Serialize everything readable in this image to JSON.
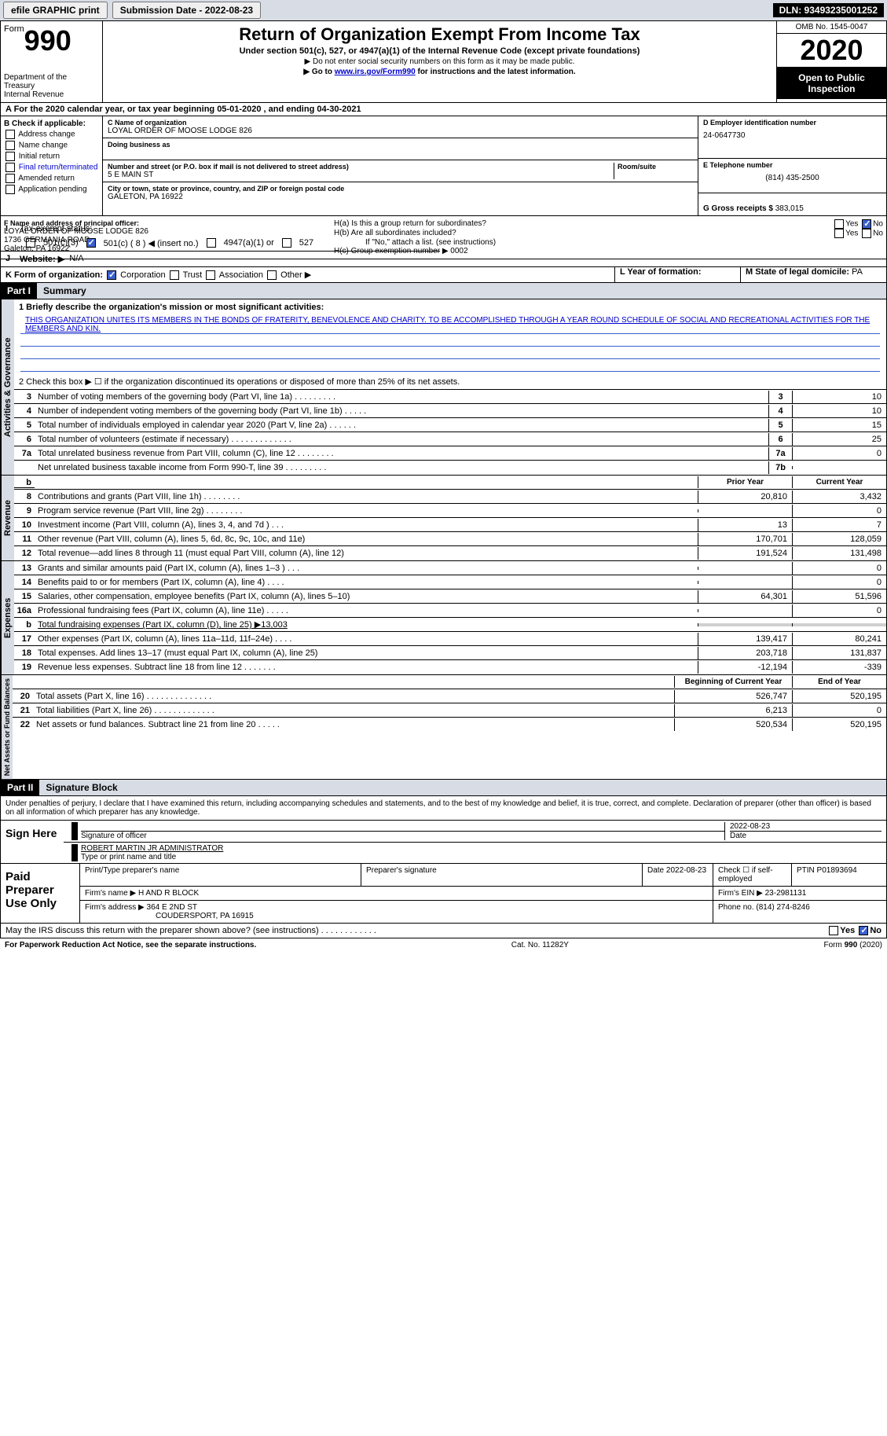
{
  "topbar": {
    "efile": "efile GRAPHIC print",
    "submission": "Submission Date - 2022-08-23",
    "dln": "DLN: 93493235001252"
  },
  "header": {
    "form_word": "Form",
    "form_num": "990",
    "dept1": "Department of the Treasury",
    "dept2": "Internal Revenue",
    "title": "Return of Organization Exempt From Income Tax",
    "sub1": "Under section 501(c), 527, or 4947(a)(1) of the Internal Revenue Code (except private foundations)",
    "sub2": "▶ Do not enter social security numbers on this form as it may be made public.",
    "sub3_a": "▶ Go to ",
    "sub3_link": "www.irs.gov/Form990",
    "sub3_b": " for instructions and the latest information.",
    "omb": "OMB No. 1545-0047",
    "year": "2020",
    "inspect": "Open to Public Inspection"
  },
  "line_a": "A For the 2020 calendar year, or tax year beginning 05-01-2020   , and ending 04-30-2021",
  "col_b": {
    "head": "B Check if applicable:",
    "items": [
      "Address change",
      "Name change",
      "Initial return",
      "Final return/terminated",
      "Amended return",
      "Application pending"
    ]
  },
  "name_block": {
    "label_c": "C Name of organization",
    "name": "LOYAL ORDER OF MOOSE LODGE 826",
    "dba_label": "Doing business as",
    "addr_label": "Number and street (or P.O. box if mail is not delivered to street address)",
    "room_label": "Room/suite",
    "addr": "5 E MAIN ST",
    "city_label": "City or town, state or province, country, and ZIP or foreign postal code",
    "city": "GALETON, PA  16922"
  },
  "right_block": {
    "ein_label": "D Employer identification number",
    "ein": "24-0647730",
    "tel_label": "E Telephone number",
    "tel": "(814) 435-2500",
    "gross_label": "G Gross receipts $ ",
    "gross": "383,015"
  },
  "officer": {
    "label": "F  Name and address of principal officer:",
    "name": "LOYAL ORDER OF MOOSE LODGE 826",
    "addr1": "1736 GERMANIA ROAD",
    "addr2": "Galeton, PA  16922",
    "ha": "H(a)  Is this a group return for subordinates?",
    "hb": "H(b)  Are all subordinates included?",
    "hb_note": "If \"No,\" attach a list. (see instructions)",
    "hc": "H(c)  Group exemption number ▶   0002",
    "yes": "Yes",
    "no": "No"
  },
  "tax_status": {
    "label": "Tax-exempt status:",
    "opt1": "501(c)(3)",
    "opt2": "501(c) ( 8 ) ◀ (insert no.)",
    "opt3": "4947(a)(1) or",
    "opt4": "527"
  },
  "website": {
    "label": "Website: ▶",
    "val": "N/A"
  },
  "form_org": {
    "label": "K Form of organization:",
    "opts": [
      "Corporation",
      "Trust",
      "Association",
      "Other ▶"
    ],
    "year_label": "L Year of formation:",
    "state_label": "M State of legal domicile: ",
    "state": "PA"
  },
  "part1": {
    "label": "Part I",
    "title": "Summary"
  },
  "mission": {
    "q1": "1  Briefly describe the organization's mission or most significant activities:",
    "text": "THIS ORGANIZATION UNITES ITS MEMBERS IN THE BONDS OF FRATERITY, BENEVOLENCE AND CHARITY. TO BE ACCOMPLISHED THROUGH A YEAR ROUND SCHEDULE OF SOCIAL AND RECREATIONAL ACTIVITIES FOR THE MEMBERS AND KIN.",
    "q2": "2   Check this box ▶ ☐  if the organization discontinued its operations or disposed of more than 25% of its net assets."
  },
  "governance": {
    "tab": "Activities & Governance",
    "rows": [
      {
        "n": "3",
        "d": "Number of voting members of the governing body (Part VI, line 1a)  .    .    .    .    .    .    .    .    .",
        "b": "3",
        "v": "10"
      },
      {
        "n": "4",
        "d": "Number of independent voting members of the governing body (Part VI, line 1b)  .    .    .    .    .",
        "b": "4",
        "v": "10"
      },
      {
        "n": "5",
        "d": "Total number of individuals employed in calendar year 2020 (Part V, line 2a)  .    .    .    .    .    .",
        "b": "5",
        "v": "15"
      },
      {
        "n": "6",
        "d": "Total number of volunteers (estimate if necessary)  .    .    .    .    .    .    .    .    .    .    .    .    .",
        "b": "6",
        "v": "25"
      },
      {
        "n": "7a",
        "d": "Total unrelated business revenue from Part VIII, column (C), line 12  .    .    .    .    .    .    .    .",
        "b": "7a",
        "v": "0"
      },
      {
        "n": "",
        "d": "Net unrelated business taxable income from Form 990-T, line 39  .    .    .    .    .    .    .    .    .",
        "b": "7b",
        "v": ""
      }
    ]
  },
  "revenue": {
    "tab": "Revenue",
    "head_prior": "Prior Year",
    "head_current": "Current Year",
    "rows": [
      {
        "n": "8",
        "d": "Contributions and grants (Part VIII, line 1h)  .    .    .    .    .    .    .    .",
        "p": "20,810",
        "c": "3,432"
      },
      {
        "n": "9",
        "d": "Program service revenue (Part VIII, line 2g)  .    .    .    .    .    .    .    .",
        "p": "",
        "c": "0"
      },
      {
        "n": "10",
        "d": "Investment income (Part VIII, column (A), lines 3, 4, and 7d )  .    .    .",
        "p": "13",
        "c": "7"
      },
      {
        "n": "11",
        "d": "Other revenue (Part VIII, column (A), lines 5, 6d, 8c, 9c, 10c, and 11e)",
        "p": "170,701",
        "c": "128,059"
      },
      {
        "n": "12",
        "d": "Total revenue—add lines 8 through 11 (must equal Part VIII, column (A), line 12)",
        "p": "191,524",
        "c": "131,498"
      }
    ]
  },
  "expenses": {
    "tab": "Expenses",
    "rows": [
      {
        "n": "13",
        "d": "Grants and similar amounts paid (Part IX, column (A), lines 1–3 )  .    .    .",
        "p": "",
        "c": "0"
      },
      {
        "n": "14",
        "d": "Benefits paid to or for members (Part IX, column (A), line 4)  .    .    .    .",
        "p": "",
        "c": "0"
      },
      {
        "n": "15",
        "d": "Salaries, other compensation, employee benefits (Part IX, column (A), lines 5–10)",
        "p": "64,301",
        "c": "51,596"
      },
      {
        "n": "16a",
        "d": "Professional fundraising fees (Part IX, column (A), line 11e)  .    .    .    .    .",
        "p": "",
        "c": "0"
      },
      {
        "n": "b",
        "d": "Total fundraising expenses (Part IX, column (D), line 25) ▶13,003",
        "p": "shaded",
        "c": "shaded"
      },
      {
        "n": "17",
        "d": "Other expenses (Part IX, column (A), lines 11a–11d, 11f–24e)  .    .    .    .",
        "p": "139,417",
        "c": "80,241"
      },
      {
        "n": "18",
        "d": "Total expenses. Add lines 13–17 (must equal Part IX, column (A), line 25)",
        "p": "203,718",
        "c": "131,837"
      },
      {
        "n": "19",
        "d": "Revenue less expenses. Subtract line 18 from line 12  .    .    .    .    .    .    .",
        "p": "-12,194",
        "c": "-339"
      }
    ]
  },
  "netassets": {
    "tab": "Net Assets or Fund Balances",
    "head_begin": "Beginning of Current Year",
    "head_end": "End of Year",
    "rows": [
      {
        "n": "20",
        "d": "Total assets (Part X, line 16)  .    .    .    .    .    .    .    .    .    .    .    .    .    .",
        "p": "526,747",
        "c": "520,195"
      },
      {
        "n": "21",
        "d": "Total liabilities (Part X, line 26)  .    .    .    .    .    .    .    .    .    .    .    .    .",
        "p": "6,213",
        "c": "0"
      },
      {
        "n": "22",
        "d": "Net assets or fund balances. Subtract line 21 from line 20  .    .    .    .    .",
        "p": "520,534",
        "c": "520,195"
      }
    ]
  },
  "part2": {
    "label": "Part II",
    "title": "Signature Block"
  },
  "sig_note": "Under penalties of perjury, I declare that I have examined this return, including accompanying schedules and statements, and to the best of my knowledge and belief, it is true, correct, and complete. Declaration of preparer (other than officer) is based on all information of which preparer has any knowledge.",
  "sign": {
    "here": "Sign Here",
    "sig_label": "Signature of officer",
    "date": "2022-08-23",
    "date_label": "Date",
    "name": "ROBERT MARTIN JR  ADMINISTRATOR",
    "name_label": "Type or print name and title"
  },
  "preparer": {
    "left": "Paid Preparer Use Only",
    "head": [
      "Print/Type preparer's name",
      "Preparer's signature",
      "Date 2022-08-23",
      "Check ☐ if self-employed",
      "PTIN P01893694"
    ],
    "firm_label": "Firm's name    ▶",
    "firm": "H AND R BLOCK",
    "ein_label": "Firm's EIN ▶",
    "ein": "23-2981131",
    "addr_label": "Firm's address ▶",
    "addr": "364 E 2ND ST",
    "city": "COUDERSPORT, PA  16915",
    "phone_label": "Phone no. ",
    "phone": "(814) 274-8246"
  },
  "discuss": "May the IRS discuss this return with the preparer shown above? (see instructions)  .    .    .    .    .    .    .    .    .    .    .    .",
  "footer": {
    "left": "For Paperwork Reduction Act Notice, see the separate instructions.",
    "mid": "Cat. No. 11282Y",
    "right": "Form 990 (2020)"
  }
}
